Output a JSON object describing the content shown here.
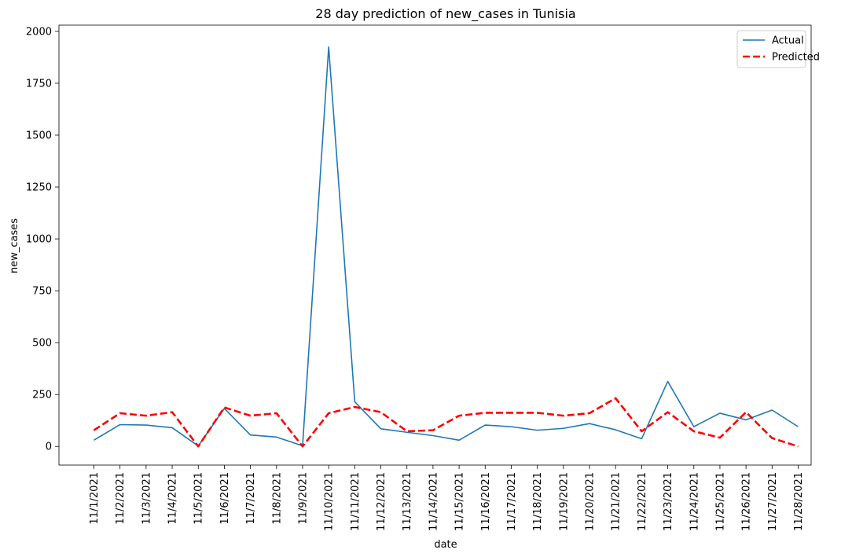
{
  "chart_data": {
    "type": "line",
    "title": "28 day prediction of new_cases in Tunisia",
    "xlabel": "date",
    "ylabel": "new_cases",
    "ylim": [
      -90,
      2030
    ],
    "yticks": [
      0,
      250,
      500,
      750,
      1000,
      1250,
      1500,
      1750,
      2000
    ],
    "grid": false,
    "legend_position": "top-right",
    "categories": [
      "11/1/2021",
      "11/2/2021",
      "11/3/2021",
      "11/4/2021",
      "11/5/2021",
      "11/6/2021",
      "11/7/2021",
      "11/8/2021",
      "11/9/2021",
      "11/10/2021",
      "11/11/2021",
      "11/12/2021",
      "11/13/2021",
      "11/14/2021",
      "11/15/2021",
      "11/16/2021",
      "11/17/2021",
      "11/18/2021",
      "11/19/2021",
      "11/20/2021",
      "11/21/2021",
      "11/22/2021",
      "11/23/2021",
      "11/24/2021",
      "11/25/2021",
      "11/26/2021",
      "11/27/2021",
      "11/28/2021"
    ],
    "series": [
      {
        "name": "Actual",
        "color": "#1f77b4",
        "style": "solid",
        "values": [
          30,
          105,
          103,
          90,
          2,
          183,
          55,
          45,
          3,
          1925,
          215,
          85,
          68,
          52,
          30,
          103,
          95,
          78,
          87,
          110,
          80,
          37,
          313,
          95,
          160,
          128,
          175,
          95
        ]
      },
      {
        "name": "Predicted",
        "color": "#ff0000",
        "style": "dashed",
        "values": [
          78,
          160,
          148,
          165,
          0,
          188,
          148,
          160,
          0,
          160,
          190,
          165,
          73,
          78,
          148,
          162,
          162,
          162,
          148,
          160,
          232,
          73,
          165,
          73,
          42,
          165,
          40,
          0
        ]
      }
    ]
  }
}
